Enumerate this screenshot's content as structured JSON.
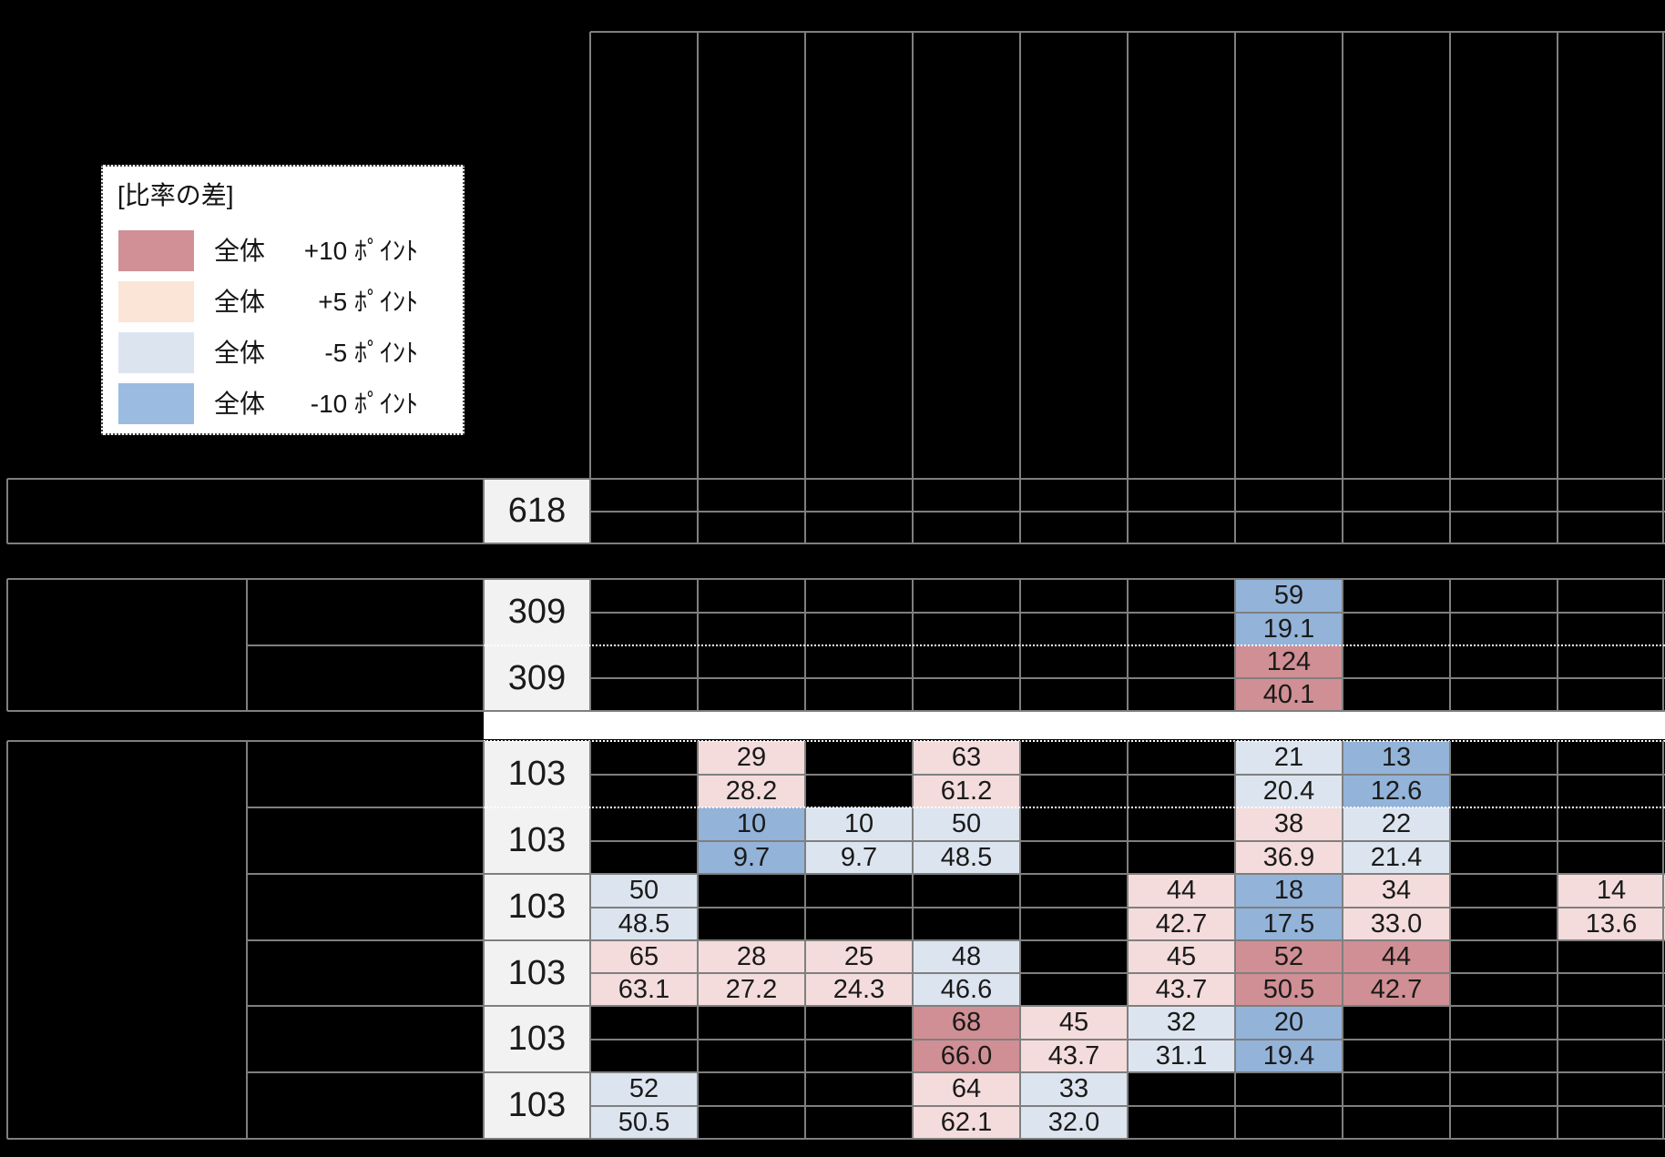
{
  "legend": {
    "title": "[比率の差]",
    "items": [
      {
        "label": "全体",
        "diff": "+10 ﾎﾟｲﾝﾄ",
        "color": "#D09095"
      },
      {
        "label": "全体",
        "diff": "+5 ﾎﾟｲﾝﾄ",
        "color": "#FAE5D7"
      },
      {
        "label": "全体",
        "diff": "-5 ﾎﾟｲﾝﾄ",
        "color": "#DCE5EF"
      },
      {
        "label": "全体",
        "diff": "-10 ﾎﾟｲﾝﾄ",
        "color": "#9BBCE0"
      }
    ]
  },
  "colors": {
    "plus10": "#D08F94",
    "plus5": "#F4DCDC",
    "minus5": "#DCE5EF",
    "minus10": "#93B3D9",
    "grid": "#7F7F7F",
    "n_bg": "#F2F2F2",
    "strip": "#FFFFFF",
    "text": "#1A1A1A",
    "background": "#000000"
  },
  "table": {
    "columns": 10,
    "blocks": [
      {
        "rows": [
          {
            "n": "618",
            "cells": []
          }
        ]
      },
      {
        "rows": [
          {
            "n": "309",
            "cells": [
              {
                "col": 7,
                "count": "59",
                "pct": "19.1",
                "level": "minus10"
              }
            ]
          },
          {
            "n": "309",
            "cells": [
              {
                "col": 7,
                "count": "124",
                "pct": "40.1",
                "level": "plus10"
              }
            ]
          }
        ]
      },
      {
        "rows": [
          {
            "n": "103",
            "cells": [
              {
                "col": 2,
                "count": "29",
                "pct": "28.2",
                "level": "plus5"
              },
              {
                "col": 4,
                "count": "63",
                "pct": "61.2",
                "level": "plus5"
              },
              {
                "col": 7,
                "count": "21",
                "pct": "20.4",
                "level": "minus5"
              },
              {
                "col": 8,
                "count": "13",
                "pct": "12.6",
                "level": "minus10"
              }
            ]
          },
          {
            "n": "103",
            "cells": [
              {
                "col": 2,
                "count": "10",
                "pct": "9.7",
                "level": "minus10"
              },
              {
                "col": 3,
                "count": "10",
                "pct": "9.7",
                "level": "minus5"
              },
              {
                "col": 4,
                "count": "50",
                "pct": "48.5",
                "level": "minus5"
              },
              {
                "col": 7,
                "count": "38",
                "pct": "36.9",
                "level": "plus5"
              },
              {
                "col": 8,
                "count": "22",
                "pct": "21.4",
                "level": "minus5"
              }
            ]
          },
          {
            "n": "103",
            "cells": [
              {
                "col": 1,
                "count": "50",
                "pct": "48.5",
                "level": "minus5"
              },
              {
                "col": 6,
                "count": "44",
                "pct": "42.7",
                "level": "plus5"
              },
              {
                "col": 7,
                "count": "18",
                "pct": "17.5",
                "level": "minus10"
              },
              {
                "col": 8,
                "count": "34",
                "pct": "33.0",
                "level": "plus5"
              },
              {
                "col": 10,
                "count": "14",
                "pct": "13.6",
                "level": "plus5"
              }
            ]
          },
          {
            "n": "103",
            "cells": [
              {
                "col": 1,
                "count": "65",
                "pct": "63.1",
                "level": "plus5"
              },
              {
                "col": 2,
                "count": "28",
                "pct": "27.2",
                "level": "plus5"
              },
              {
                "col": 3,
                "count": "25",
                "pct": "24.3",
                "level": "plus5"
              },
              {
                "col": 4,
                "count": "48",
                "pct": "46.6",
                "level": "minus5"
              },
              {
                "col": 6,
                "count": "45",
                "pct": "43.7",
                "level": "plus5"
              },
              {
                "col": 7,
                "count": "52",
                "pct": "50.5",
                "level": "plus10"
              },
              {
                "col": 8,
                "count": "44",
                "pct": "42.7",
                "level": "plus10"
              }
            ]
          },
          {
            "n": "103",
            "cells": [
              {
                "col": 4,
                "count": "68",
                "pct": "66.0",
                "level": "plus10"
              },
              {
                "col": 5,
                "count": "45",
                "pct": "43.7",
                "level": "plus5"
              },
              {
                "col": 6,
                "count": "32",
                "pct": "31.1",
                "level": "minus5"
              },
              {
                "col": 7,
                "count": "20",
                "pct": "19.4",
                "level": "minus10"
              }
            ]
          },
          {
            "n": "103",
            "cells": [
              {
                "col": 1,
                "count": "52",
                "pct": "50.5",
                "level": "minus5"
              },
              {
                "col": 4,
                "count": "64",
                "pct": "62.1",
                "level": "plus5"
              },
              {
                "col": 5,
                "count": "33",
                "pct": "32.0",
                "level": "minus5"
              }
            ]
          }
        ]
      }
    ]
  }
}
